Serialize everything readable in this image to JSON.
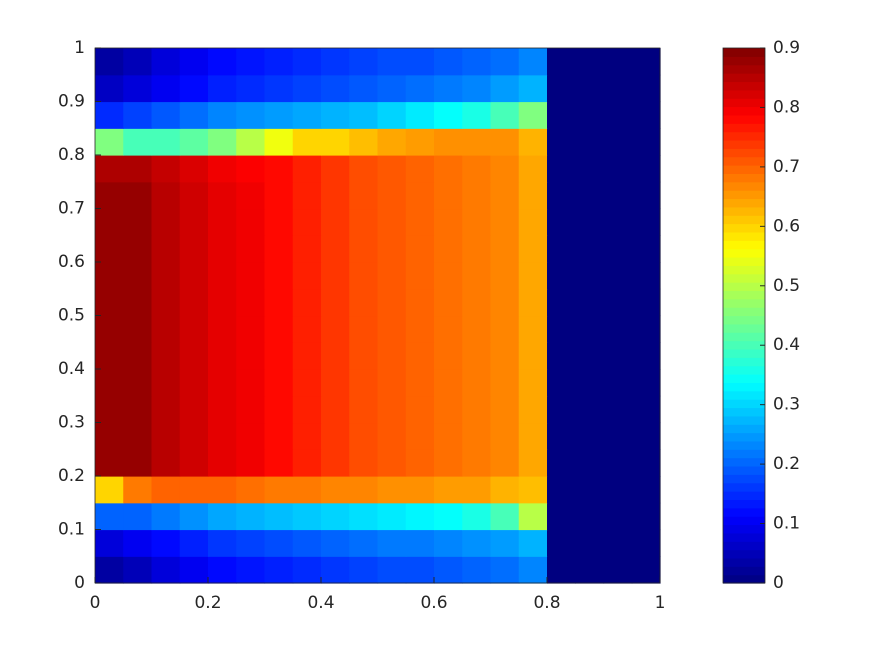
{
  "chart_data": {
    "type": "heatmap",
    "x": [
      0.025,
      0.075,
      0.125,
      0.175,
      0.225,
      0.275,
      0.325,
      0.375,
      0.425,
      0.475,
      0.525,
      0.575,
      0.625,
      0.675,
      0.725,
      0.775,
      0.825,
      0.875,
      0.925,
      0.975
    ],
    "y": [
      0.025,
      0.075,
      0.125,
      0.175,
      0.225,
      0.275,
      0.325,
      0.375,
      0.425,
      0.475,
      0.525,
      0.575,
      0.625,
      0.675,
      0.725,
      0.775,
      0.825,
      0.875,
      0.925,
      0.975
    ],
    "z": [
      [
        0.03,
        0.05,
        0.08,
        0.1,
        0.12,
        0.13,
        0.14,
        0.15,
        0.16,
        0.17,
        0.18,
        0.18,
        0.19,
        0.2,
        0.21,
        0.23,
        0,
        0,
        0,
        0
      ],
      [
        0.08,
        0.1,
        0.12,
        0.14,
        0.16,
        0.17,
        0.18,
        0.19,
        0.2,
        0.21,
        0.22,
        0.22,
        0.23,
        0.24,
        0.25,
        0.27,
        0,
        0,
        0,
        0
      ],
      [
        0.2,
        0.2,
        0.22,
        0.24,
        0.26,
        0.27,
        0.28,
        0.29,
        0.3,
        0.31,
        0.32,
        0.33,
        0.34,
        0.36,
        0.4,
        0.5,
        0,
        0,
        0,
        0
      ],
      [
        0.6,
        0.68,
        0.7,
        0.7,
        0.7,
        0.69,
        0.68,
        0.68,
        0.67,
        0.67,
        0.66,
        0.66,
        0.65,
        0.65,
        0.63,
        0.62,
        0,
        0,
        0,
        0
      ],
      [
        0.88,
        0.88,
        0.85,
        0.83,
        0.81,
        0.8,
        0.78,
        0.76,
        0.74,
        0.72,
        0.71,
        0.7,
        0.69,
        0.68,
        0.67,
        0.64,
        0,
        0,
        0,
        0
      ],
      [
        0.88,
        0.88,
        0.85,
        0.83,
        0.81,
        0.8,
        0.78,
        0.76,
        0.74,
        0.72,
        0.71,
        0.7,
        0.69,
        0.68,
        0.67,
        0.64,
        0,
        0,
        0,
        0
      ],
      [
        0.88,
        0.88,
        0.85,
        0.83,
        0.81,
        0.8,
        0.78,
        0.76,
        0.74,
        0.72,
        0.71,
        0.7,
        0.69,
        0.68,
        0.67,
        0.64,
        0,
        0,
        0,
        0
      ],
      [
        0.88,
        0.88,
        0.85,
        0.83,
        0.81,
        0.8,
        0.78,
        0.76,
        0.74,
        0.72,
        0.71,
        0.7,
        0.69,
        0.68,
        0.67,
        0.64,
        0,
        0,
        0,
        0
      ],
      [
        0.88,
        0.88,
        0.85,
        0.83,
        0.81,
        0.8,
        0.78,
        0.76,
        0.74,
        0.72,
        0.71,
        0.7,
        0.69,
        0.68,
        0.67,
        0.64,
        0,
        0,
        0,
        0
      ],
      [
        0.88,
        0.88,
        0.85,
        0.83,
        0.81,
        0.8,
        0.78,
        0.76,
        0.74,
        0.72,
        0.71,
        0.7,
        0.69,
        0.68,
        0.67,
        0.64,
        0,
        0,
        0,
        0
      ],
      [
        0.88,
        0.88,
        0.85,
        0.83,
        0.81,
        0.8,
        0.78,
        0.76,
        0.74,
        0.72,
        0.71,
        0.7,
        0.69,
        0.68,
        0.67,
        0.64,
        0,
        0,
        0,
        0
      ],
      [
        0.88,
        0.88,
        0.85,
        0.83,
        0.81,
        0.8,
        0.78,
        0.76,
        0.74,
        0.72,
        0.71,
        0.7,
        0.69,
        0.68,
        0.67,
        0.64,
        0,
        0,
        0,
        0
      ],
      [
        0.88,
        0.88,
        0.85,
        0.83,
        0.81,
        0.8,
        0.78,
        0.76,
        0.74,
        0.72,
        0.71,
        0.7,
        0.69,
        0.68,
        0.67,
        0.64,
        0,
        0,
        0,
        0
      ],
      [
        0.88,
        0.88,
        0.85,
        0.83,
        0.81,
        0.8,
        0.78,
        0.76,
        0.74,
        0.72,
        0.71,
        0.7,
        0.69,
        0.68,
        0.67,
        0.64,
        0,
        0,
        0,
        0
      ],
      [
        0.88,
        0.88,
        0.85,
        0.83,
        0.81,
        0.8,
        0.78,
        0.76,
        0.74,
        0.72,
        0.71,
        0.7,
        0.69,
        0.68,
        0.67,
        0.64,
        0,
        0,
        0,
        0
      ],
      [
        0.86,
        0.86,
        0.84,
        0.82,
        0.8,
        0.79,
        0.78,
        0.76,
        0.74,
        0.72,
        0.71,
        0.7,
        0.69,
        0.68,
        0.67,
        0.64,
        0,
        0,
        0,
        0
      ],
      [
        0.45,
        0.4,
        0.4,
        0.42,
        0.45,
        0.5,
        0.55,
        0.6,
        0.6,
        0.62,
        0.64,
        0.65,
        0.66,
        0.66,
        0.66,
        0.63,
        0,
        0,
        0,
        0
      ],
      [
        0.15,
        0.17,
        0.19,
        0.21,
        0.23,
        0.24,
        0.25,
        0.26,
        0.27,
        0.28,
        0.3,
        0.32,
        0.34,
        0.36,
        0.4,
        0.45,
        0,
        0,
        0,
        0
      ],
      [
        0.06,
        0.08,
        0.1,
        0.12,
        0.14,
        0.15,
        0.16,
        0.17,
        0.18,
        0.19,
        0.2,
        0.21,
        0.22,
        0.23,
        0.25,
        0.27,
        0,
        0,
        0,
        0
      ],
      [
        0.03,
        0.05,
        0.08,
        0.1,
        0.12,
        0.13,
        0.14,
        0.15,
        0.16,
        0.17,
        0.18,
        0.18,
        0.19,
        0.2,
        0.21,
        0.23,
        0,
        0,
        0,
        0
      ]
    ],
    "xlim": [
      0,
      1
    ],
    "xticks": [
      0,
      0.2,
      0.4,
      0.6,
      0.8,
      1
    ],
    "ylim": [
      0,
      1
    ],
    "yticks": [
      0,
      0.1,
      0.2,
      0.3,
      0.4,
      0.5,
      0.6,
      0.7,
      0.8,
      0.9,
      1
    ],
    "colormap": "jet",
    "clim": [
      0,
      0.9
    ],
    "cticks": [
      0,
      0.1,
      0.2,
      0.3,
      0.4,
      0.5,
      0.6,
      0.7,
      0.8,
      0.9
    ]
  }
}
